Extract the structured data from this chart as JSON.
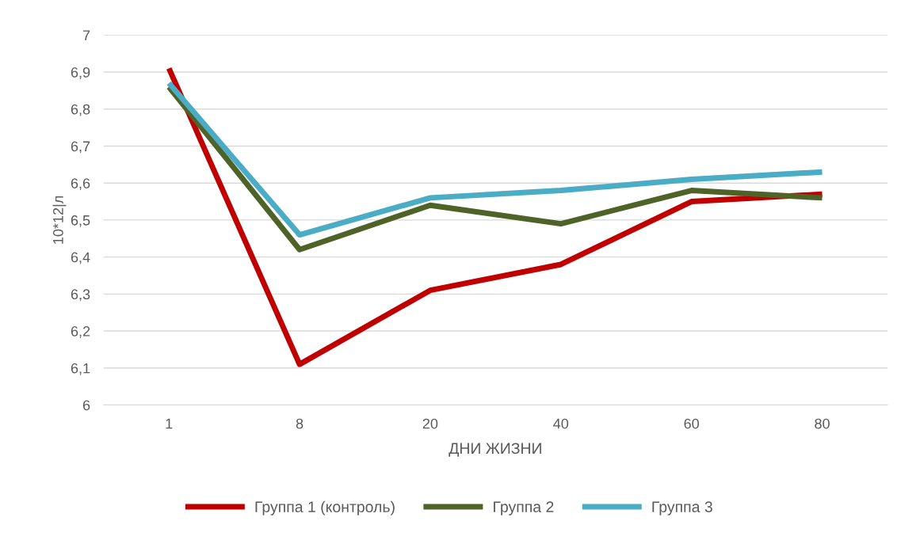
{
  "chart_data": {
    "type": "line",
    "xlabel": "ДНИ ЖИЗНИ",
    "ylabel": "10*12|л",
    "categories": [
      "1",
      "8",
      "20",
      "40",
      "60",
      "80"
    ],
    "series": [
      {
        "name": "Группа 1 (контроль)",
        "color": "#c00000",
        "values": [
          6.91,
          6.11,
          6.31,
          6.38,
          6.55,
          6.57
        ]
      },
      {
        "name": "Группа 2",
        "color": "#4f6228",
        "values": [
          6.86,
          6.42,
          6.54,
          6.49,
          6.58,
          6.56
        ]
      },
      {
        "name": "Группа 3",
        "color": "#4bacc6",
        "values": [
          6.87,
          6.46,
          6.56,
          6.58,
          6.61,
          6.63
        ]
      }
    ],
    "ylim": [
      6,
      7
    ],
    "yticks": [
      6,
      {
        "value": 6.1,
        "label": "6,1"
      },
      {
        "value": 6.2,
        "label": "6,2"
      },
      {
        "value": 6.3,
        "label": "6,3"
      },
      {
        "value": 6.4,
        "label": "6,4"
      },
      {
        "value": 6.5,
        "label": "6,5"
      },
      {
        "value": 6.6,
        "label": "6,6"
      },
      {
        "value": 6.7,
        "label": "6,7"
      },
      {
        "value": 6.8,
        "label": "6,8"
      },
      {
        "value": 6.9,
        "label": "6,9"
      },
      7
    ],
    "grid": "y",
    "legend": "bottom",
    "marker": "none",
    "line_style": "solid"
  }
}
